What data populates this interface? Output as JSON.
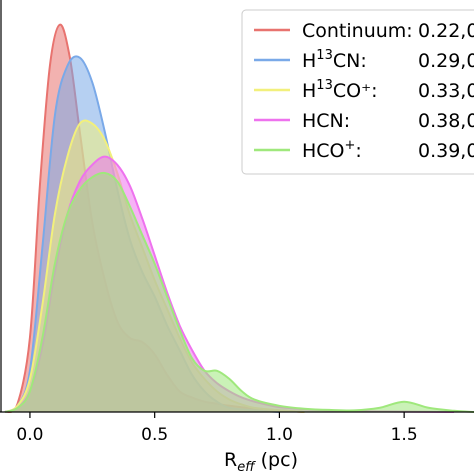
{
  "chart_data": {
    "type": "area",
    "title": "",
    "xlabel_main": "R",
    "xlabel_sub": "eff",
    "xlabel_unit": " (pc)",
    "ylabel": "",
    "xlim": [
      -0.12,
      1.78
    ],
    "ylim": [
      0,
      1
    ],
    "x_ticks": [
      0.0,
      0.5,
      1.0,
      1.5
    ],
    "x_tick_labels": [
      "0.0",
      "0.5",
      "1.0",
      "1.5"
    ],
    "grid": false,
    "legend_position": "top-right",
    "series": [
      {
        "name_main": "Continuum:",
        "name_sup": "",
        "name_tail": "",
        "value_text": "0.22,0",
        "color": "#e8736f",
        "points": [
          [
            -0.1,
            0.0
          ],
          [
            -0.05,
            0.02
          ],
          [
            0.0,
            0.18
          ],
          [
            0.04,
            0.55
          ],
          [
            0.08,
            0.84
          ],
          [
            0.12,
            0.94
          ],
          [
            0.16,
            0.86
          ],
          [
            0.2,
            0.68
          ],
          [
            0.25,
            0.46
          ],
          [
            0.3,
            0.32
          ],
          [
            0.35,
            0.22
          ],
          [
            0.4,
            0.18
          ],
          [
            0.45,
            0.17
          ],
          [
            0.5,
            0.14
          ],
          [
            0.55,
            0.09
          ],
          [
            0.6,
            0.05
          ],
          [
            0.65,
            0.035
          ],
          [
            0.7,
            0.025
          ],
          [
            0.75,
            0.02
          ],
          [
            0.8,
            0.015
          ],
          [
            0.9,
            0.008
          ],
          [
            1.0,
            0.004
          ],
          [
            1.1,
            0.0
          ]
        ]
      },
      {
        "name_main": "H",
        "name_sup": "13",
        "name_tail": "CN:",
        "value_text": "0.29,0",
        "color": "#7aa9e8",
        "points": [
          [
            -0.1,
            0.0
          ],
          [
            -0.05,
            0.015
          ],
          [
            0.0,
            0.1
          ],
          [
            0.05,
            0.4
          ],
          [
            0.1,
            0.72
          ],
          [
            0.15,
            0.84
          ],
          [
            0.2,
            0.86
          ],
          [
            0.25,
            0.8
          ],
          [
            0.3,
            0.68
          ],
          [
            0.35,
            0.54
          ],
          [
            0.4,
            0.42
          ],
          [
            0.45,
            0.34
          ],
          [
            0.5,
            0.28
          ],
          [
            0.55,
            0.21
          ],
          [
            0.6,
            0.15
          ],
          [
            0.65,
            0.09
          ],
          [
            0.7,
            0.05
          ],
          [
            0.75,
            0.025
          ],
          [
            0.8,
            0.01
          ],
          [
            0.9,
            0.004
          ],
          [
            1.0,
            0.0
          ]
        ]
      },
      {
        "name_main": "H",
        "name_sup": "13",
        "name_tail": "CO⁺:",
        "value_text": "0.33,0",
        "color": "#f2f07c",
        "points": [
          [
            -0.1,
            0.0
          ],
          [
            -0.05,
            0.015
          ],
          [
            0.0,
            0.08
          ],
          [
            0.05,
            0.26
          ],
          [
            0.1,
            0.48
          ],
          [
            0.15,
            0.62
          ],
          [
            0.2,
            0.7
          ],
          [
            0.25,
            0.7
          ],
          [
            0.3,
            0.66
          ],
          [
            0.35,
            0.58
          ],
          [
            0.4,
            0.48
          ],
          [
            0.45,
            0.4
          ],
          [
            0.5,
            0.32
          ],
          [
            0.55,
            0.25
          ],
          [
            0.6,
            0.18
          ],
          [
            0.65,
            0.12
          ],
          [
            0.7,
            0.08
          ],
          [
            0.75,
            0.05
          ],
          [
            0.8,
            0.03
          ],
          [
            0.85,
            0.018
          ],
          [
            0.9,
            0.01
          ],
          [
            1.0,
            0.004
          ],
          [
            1.1,
            0.0
          ]
        ]
      },
      {
        "name_main": "HCN:",
        "name_sup": "",
        "name_tail": "",
        "value_text": "0.38,0",
        "color": "#ee72ee",
        "points": [
          [
            -0.1,
            0.0
          ],
          [
            -0.05,
            0.01
          ],
          [
            0.0,
            0.05
          ],
          [
            0.05,
            0.16
          ],
          [
            0.1,
            0.34
          ],
          [
            0.15,
            0.48
          ],
          [
            0.2,
            0.56
          ],
          [
            0.25,
            0.6
          ],
          [
            0.3,
            0.62
          ],
          [
            0.35,
            0.6
          ],
          [
            0.4,
            0.55
          ],
          [
            0.45,
            0.47
          ],
          [
            0.5,
            0.38
          ],
          [
            0.55,
            0.29
          ],
          [
            0.6,
            0.21
          ],
          [
            0.65,
            0.15
          ],
          [
            0.7,
            0.1
          ],
          [
            0.75,
            0.07
          ],
          [
            0.8,
            0.05
          ],
          [
            0.85,
            0.035
          ],
          [
            0.9,
            0.025
          ],
          [
            0.95,
            0.018
          ],
          [
            1.0,
            0.012
          ],
          [
            1.1,
            0.007
          ],
          [
            1.2,
            0.004
          ],
          [
            1.3,
            0.002
          ],
          [
            1.5,
            0.001
          ],
          [
            1.7,
            0.0
          ]
        ]
      },
      {
        "name_main": "HCO",
        "name_sup": "+",
        "name_tail": ":",
        "value_text": "0.39,0",
        "color": "#9fe87c",
        "points": [
          [
            -0.1,
            0.0
          ],
          [
            -0.05,
            0.01
          ],
          [
            0.0,
            0.05
          ],
          [
            0.05,
            0.18
          ],
          [
            0.1,
            0.36
          ],
          [
            0.15,
            0.48
          ],
          [
            0.2,
            0.54
          ],
          [
            0.25,
            0.57
          ],
          [
            0.3,
            0.58
          ],
          [
            0.35,
            0.56
          ],
          [
            0.4,
            0.5
          ],
          [
            0.45,
            0.43
          ],
          [
            0.5,
            0.36
          ],
          [
            0.55,
            0.28
          ],
          [
            0.6,
            0.2
          ],
          [
            0.65,
            0.13
          ],
          [
            0.7,
            0.1
          ],
          [
            0.75,
            0.1
          ],
          [
            0.8,
            0.08
          ],
          [
            0.85,
            0.05
          ],
          [
            0.9,
            0.03
          ],
          [
            1.0,
            0.015
          ],
          [
            1.1,
            0.008
          ],
          [
            1.2,
            0.005
          ],
          [
            1.3,
            0.004
          ],
          [
            1.4,
            0.01
          ],
          [
            1.5,
            0.025
          ],
          [
            1.6,
            0.01
          ],
          [
            1.7,
            0.003
          ],
          [
            1.78,
            0.0
          ]
        ]
      }
    ]
  }
}
